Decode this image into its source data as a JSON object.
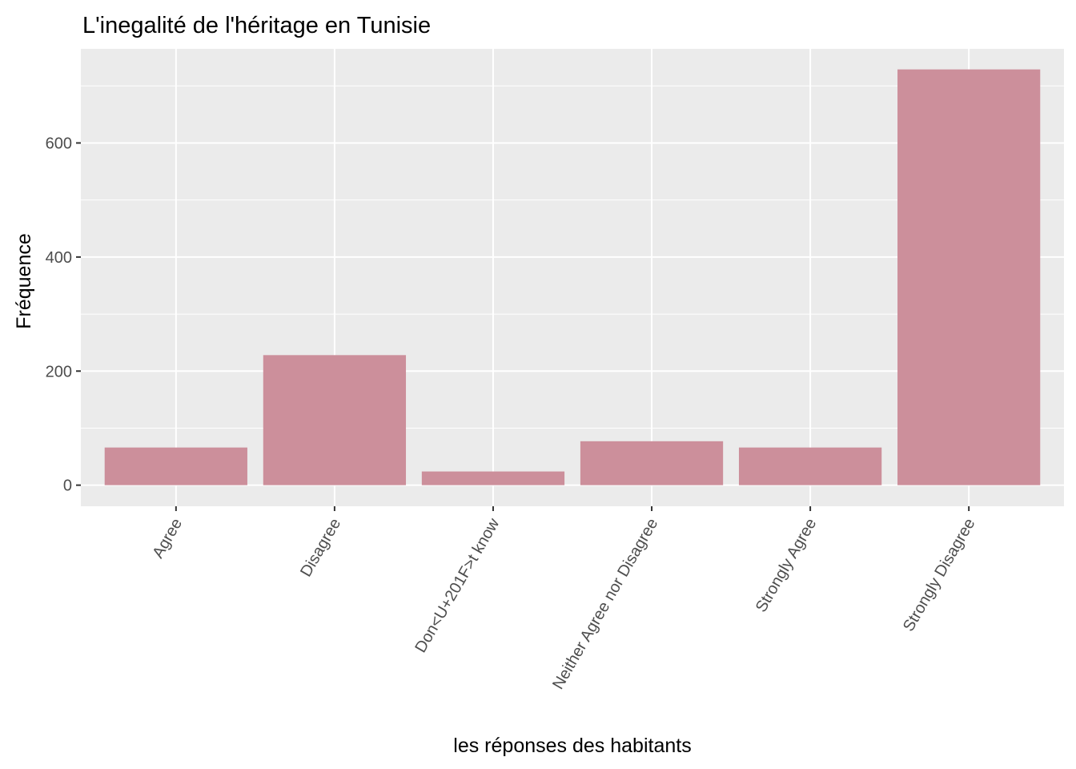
{
  "chart_data": {
    "type": "bar",
    "title": "L'inegalité de l'héritage en Tunisie",
    "xlabel": "les réponses des habitants",
    "ylabel": "Fréquence",
    "categories": [
      "Agree",
      "Disagree",
      "Don<U+201F>t know",
      "Neither Agree nor Disagree",
      "Strongly Agree",
      "Strongly Disagree"
    ],
    "values": [
      66,
      228,
      24,
      77,
      66,
      729
    ],
    "ylim": [
      -37,
      765
    ],
    "yticks": [
      0,
      200,
      400,
      600
    ],
    "ytick_labels": [
      "0",
      "200",
      "400",
      "600"
    ],
    "grid": true,
    "legend": "none",
    "colors": {
      "bar": "#cc8f9b",
      "panel": "#ebebeb",
      "grid": "#ffffff",
      "tick_text": "#4d4d4d",
      "tick_mark": "#333333"
    }
  }
}
